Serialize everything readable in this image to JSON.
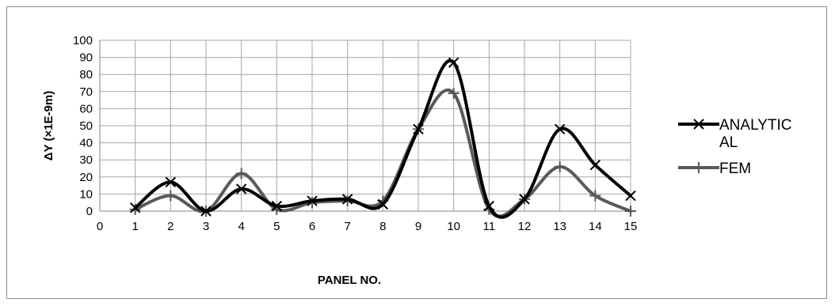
{
  "chart_data": {
    "type": "line",
    "title": "",
    "xlabel": "PANEL NO.",
    "ylabel": "ΔY (×1E-9m)",
    "xlim": [
      0,
      15
    ],
    "ylim": [
      0,
      100
    ],
    "xticks": [
      0,
      1,
      2,
      3,
      4,
      5,
      6,
      7,
      8,
      9,
      10,
      11,
      12,
      13,
      14,
      15
    ],
    "yticks": [
      0,
      10,
      20,
      30,
      40,
      50,
      60,
      70,
      80,
      90,
      100
    ],
    "grid": true,
    "smooth": true,
    "legend_position": "right",
    "series": [
      {
        "name": "ANALYTICAL",
        "legend_lines": [
          "ANALYTIC",
          "AL"
        ],
        "color": "#000000",
        "marker": "x",
        "x": [
          1,
          2,
          3,
          4,
          5,
          6,
          7,
          8,
          9,
          10,
          11,
          12,
          13,
          14,
          15
        ],
        "y": [
          2,
          17,
          0,
          13,
          3,
          6,
          7,
          4,
          48,
          87,
          3,
          7,
          48,
          27,
          9
        ]
      },
      {
        "name": "FEM",
        "legend_lines": [
          "FEM"
        ],
        "color": "#595959",
        "marker": "+",
        "x": [
          1,
          2,
          3,
          4,
          5,
          6,
          7,
          8,
          9,
          10,
          11,
          12,
          13,
          14,
          15
        ],
        "y": [
          1,
          9,
          0,
          22,
          1,
          5,
          6,
          6,
          48,
          69,
          1,
          7,
          26,
          9,
          0
        ]
      }
    ]
  }
}
